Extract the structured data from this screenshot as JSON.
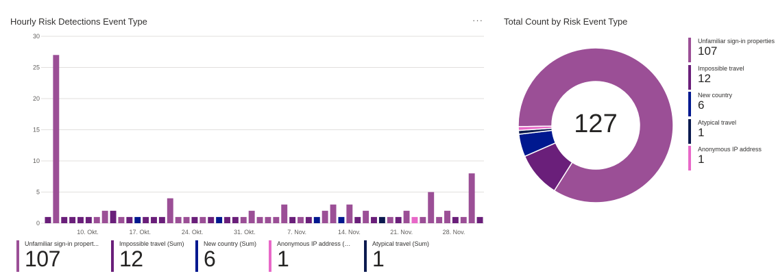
{
  "left_panel": {
    "title": "Hourly Risk Detections Event Type",
    "more_label": "···"
  },
  "right_panel": {
    "title": "Total Count by Risk Event Type",
    "center_value": "127"
  },
  "colors": {
    "unfamiliar": "#9b4f96",
    "impossible": "#6a1f7a",
    "new_country": "#00188f",
    "anonymous": "#e868c8",
    "atypical": "#0b1a4f",
    "gridline": "#e1dfdd",
    "axis_text": "#605e5c"
  },
  "chart_data": {
    "type": "bar",
    "y_ticks": [
      "0",
      "5",
      "10",
      "15",
      "20",
      "25",
      "30"
    ],
    "ylim": [
      0,
      30
    ],
    "x_ticks": [
      "10. Okt.",
      "17. Okt.",
      "24. Okt.",
      "31. Okt.",
      "7. Nov.",
      "14. Nov.",
      "21. Nov.",
      "28. Nov."
    ],
    "series_keys": [
      "unfamiliar",
      "impossible",
      "new_country",
      "anonymous",
      "atypical"
    ],
    "bars": [
      {
        "s": "impossible",
        "v": 1
      },
      {
        "s": "unfamiliar",
        "v": 27
      },
      {
        "s": "impossible",
        "v": 1
      },
      {
        "s": "impossible",
        "v": 1
      },
      {
        "s": "impossible",
        "v": 1
      },
      {
        "s": "impossible",
        "v": 1
      },
      {
        "s": "unfamiliar",
        "v": 1
      },
      {
        "s": "unfamiliar",
        "v": 2
      },
      {
        "s": "impossible",
        "v": 2
      },
      {
        "s": "unfamiliar",
        "v": 1
      },
      {
        "s": "impossible",
        "v": 1
      },
      {
        "s": "new_country",
        "v": 1
      },
      {
        "s": "impossible",
        "v": 1
      },
      {
        "s": "impossible",
        "v": 1
      },
      {
        "s": "impossible",
        "v": 1
      },
      {
        "s": "unfamiliar",
        "v": 4
      },
      {
        "s": "unfamiliar",
        "v": 1
      },
      {
        "s": "unfamiliar",
        "v": 1
      },
      {
        "s": "impossible",
        "v": 1
      },
      {
        "s": "unfamiliar",
        "v": 1
      },
      {
        "s": "impossible",
        "v": 1
      },
      {
        "s": "new_country",
        "v": 1
      },
      {
        "s": "impossible",
        "v": 1
      },
      {
        "s": "impossible",
        "v": 1
      },
      {
        "s": "unfamiliar",
        "v": 1
      },
      {
        "s": "unfamiliar",
        "v": 2
      },
      {
        "s": "unfamiliar",
        "v": 1
      },
      {
        "s": "unfamiliar",
        "v": 1
      },
      {
        "s": "unfamiliar",
        "v": 1
      },
      {
        "s": "unfamiliar",
        "v": 3
      },
      {
        "s": "impossible",
        "v": 1
      },
      {
        "s": "unfamiliar",
        "v": 1
      },
      {
        "s": "impossible",
        "v": 1
      },
      {
        "s": "new_country",
        "v": 1
      },
      {
        "s": "unfamiliar",
        "v": 2
      },
      {
        "s": "unfamiliar",
        "v": 3
      },
      {
        "s": "new_country",
        "v": 1
      },
      {
        "s": "unfamiliar",
        "v": 3
      },
      {
        "s": "impossible",
        "v": 1
      },
      {
        "s": "unfamiliar",
        "v": 2
      },
      {
        "s": "impossible",
        "v": 1
      },
      {
        "s": "atypical",
        "v": 1
      },
      {
        "s": "unfamiliar",
        "v": 1
      },
      {
        "s": "impossible",
        "v": 1
      },
      {
        "s": "unfamiliar",
        "v": 2
      },
      {
        "s": "anonymous",
        "v": 1
      },
      {
        "s": "unfamiliar",
        "v": 1
      },
      {
        "s": "unfamiliar",
        "v": 5
      },
      {
        "s": "unfamiliar",
        "v": 1
      },
      {
        "s": "unfamiliar",
        "v": 2
      },
      {
        "s": "impossible",
        "v": 1
      },
      {
        "s": "unfamiliar",
        "v": 1
      },
      {
        "s": "unfamiliar",
        "v": 8
      },
      {
        "s": "impossible",
        "v": 1
      }
    ]
  },
  "tiles": [
    {
      "label": "Unfamiliar sign-in propert...",
      "value": "107",
      "color": "#9b4f96"
    },
    {
      "label": "Impossible travel (Sum)",
      "value": "12",
      "color": "#6a1f7a"
    },
    {
      "label": "New country (Sum)",
      "value": "6",
      "color": "#00188f"
    },
    {
      "label": "Anonymous IP address (S...",
      "value": "1",
      "color": "#e868c8"
    },
    {
      "label": "Atypical travel (Sum)",
      "value": "1",
      "color": "#0b1a4f"
    }
  ],
  "donut_chart_data": {
    "type": "pie",
    "segments": [
      {
        "label": "Unfamiliar sign-in properties",
        "value": 107,
        "color": "#9b4f96"
      },
      {
        "label": "Impossible travel",
        "value": 12,
        "color": "#6a1f7a"
      },
      {
        "label": "New country",
        "value": 6,
        "color": "#00188f"
      },
      {
        "label": "Atypical travel",
        "value": 1,
        "color": "#0b1a4f"
      },
      {
        "label": "Anonymous IP address",
        "value": 1,
        "color": "#e868c8"
      }
    ]
  },
  "legend": [
    {
      "label": "Unfamiliar sign-in properties",
      "value": "107",
      "color": "#9b4f96"
    },
    {
      "label": "Impossible travel",
      "value": "12",
      "color": "#6a1f7a"
    },
    {
      "label": "New country",
      "value": "6",
      "color": "#00188f"
    },
    {
      "label": "Atypical travel",
      "value": "1",
      "color": "#0b1a4f"
    },
    {
      "label": "Anonymous IP address",
      "value": "1",
      "color": "#e868c8"
    }
  ]
}
